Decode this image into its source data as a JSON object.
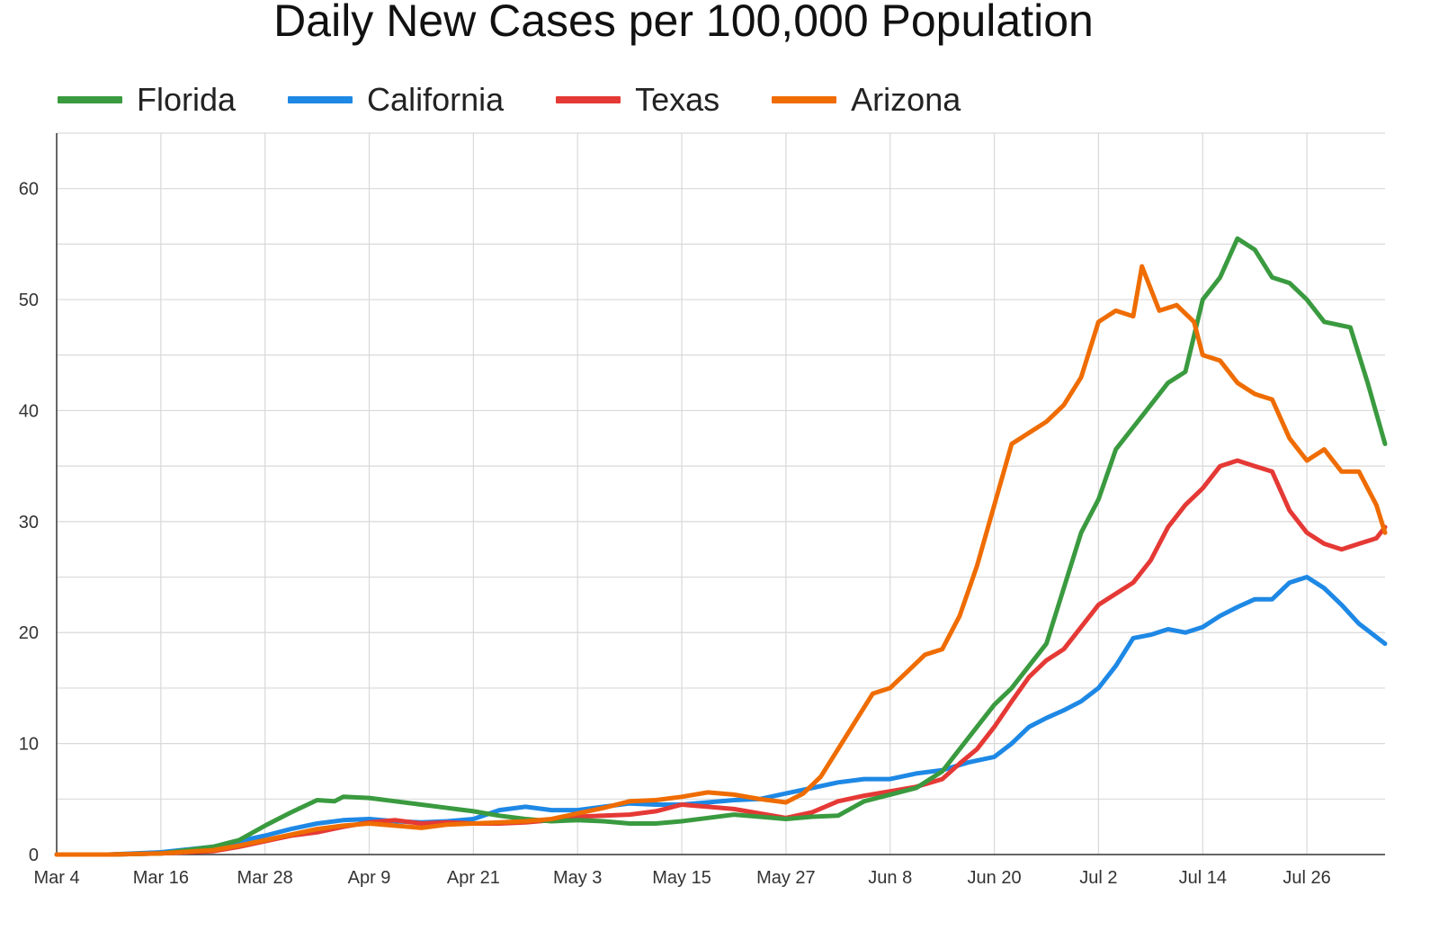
{
  "chart_data": {
    "type": "line",
    "title": "Daily New Cases per 100,000 Population",
    "xlabel": "",
    "ylabel": "",
    "ylim": [
      0,
      65
    ],
    "yticks": [
      0,
      10,
      20,
      30,
      40,
      50,
      60
    ],
    "x_tick_labels": [
      "Mar 4",
      "Mar 16",
      "Mar 28",
      "Apr 9",
      "Apr 21",
      "May 3",
      "May 15",
      "May 27",
      "Jun 8",
      "Jun 20",
      "Jul 2",
      "Jul 14",
      "Jul 26"
    ],
    "x_tick_days": [
      0,
      12,
      24,
      36,
      48,
      60,
      72,
      84,
      96,
      108,
      120,
      132,
      144
    ],
    "x_range_days": [
      0,
      153
    ],
    "grid": true,
    "legend_position": "top",
    "series": [
      {
        "name": "Florida",
        "color": "#3a9a3f",
        "points": [
          [
            0,
            0
          ],
          [
            6,
            0
          ],
          [
            12,
            0.1
          ],
          [
            18,
            0.7
          ],
          [
            21,
            1.3
          ],
          [
            24,
            2.6
          ],
          [
            27,
            3.8
          ],
          [
            30,
            4.9
          ],
          [
            32,
            4.8
          ],
          [
            33,
            5.2
          ],
          [
            36,
            5.1
          ],
          [
            39,
            4.8
          ],
          [
            42,
            4.5
          ],
          [
            45,
            4.2
          ],
          [
            48,
            3.9
          ],
          [
            51,
            3.5
          ],
          [
            54,
            3.2
          ],
          [
            57,
            3.0
          ],
          [
            60,
            3.1
          ],
          [
            63,
            3.0
          ],
          [
            66,
            2.8
          ],
          [
            69,
            2.8
          ],
          [
            72,
            3.0
          ],
          [
            75,
            3.3
          ],
          [
            78,
            3.6
          ],
          [
            81,
            3.4
          ],
          [
            84,
            3.2
          ],
          [
            87,
            3.4
          ],
          [
            90,
            3.5
          ],
          [
            93,
            4.8
          ],
          [
            96,
            5.4
          ],
          [
            99,
            6.0
          ],
          [
            102,
            7.5
          ],
          [
            104,
            9.5
          ],
          [
            106,
            11.5
          ],
          [
            108,
            13.5
          ],
          [
            110,
            15.0
          ],
          [
            112,
            17.0
          ],
          [
            114,
            19.0
          ],
          [
            116,
            24.0
          ],
          [
            118,
            29.0
          ],
          [
            120,
            32.0
          ],
          [
            122,
            36.5
          ],
          [
            124,
            38.5
          ],
          [
            126,
            40.5
          ],
          [
            128,
            42.5
          ],
          [
            130,
            43.5
          ],
          [
            132,
            50.0
          ],
          [
            134,
            52.0
          ],
          [
            136,
            55.5
          ],
          [
            138,
            54.5
          ],
          [
            140,
            52.0
          ],
          [
            142,
            51.5
          ],
          [
            144,
            50.0
          ],
          [
            146,
            48.0
          ],
          [
            149,
            47.5
          ],
          [
            151,
            42.5
          ],
          [
            153,
            37.0
          ]
        ]
      },
      {
        "name": "California",
        "color": "#1e88e5",
        "points": [
          [
            0,
            0
          ],
          [
            6,
            0
          ],
          [
            12,
            0.2
          ],
          [
            18,
            0.7
          ],
          [
            21,
            1.2
          ],
          [
            24,
            1.7
          ],
          [
            27,
            2.3
          ],
          [
            30,
            2.8
          ],
          [
            33,
            3.1
          ],
          [
            36,
            3.2
          ],
          [
            39,
            3.0
          ],
          [
            42,
            2.9
          ],
          [
            45,
            3.0
          ],
          [
            48,
            3.2
          ],
          [
            51,
            4.0
          ],
          [
            54,
            4.3
          ],
          [
            57,
            4.0
          ],
          [
            60,
            4.0
          ],
          [
            63,
            4.3
          ],
          [
            66,
            4.6
          ],
          [
            69,
            4.5
          ],
          [
            72,
            4.5
          ],
          [
            75,
            4.7
          ],
          [
            78,
            4.9
          ],
          [
            81,
            5.0
          ],
          [
            84,
            5.5
          ],
          [
            87,
            6.0
          ],
          [
            90,
            6.5
          ],
          [
            93,
            6.8
          ],
          [
            96,
            6.8
          ],
          [
            99,
            7.3
          ],
          [
            102,
            7.6
          ],
          [
            105,
            8.3
          ],
          [
            108,
            8.8
          ],
          [
            110,
            10.0
          ],
          [
            112,
            11.5
          ],
          [
            114,
            12.3
          ],
          [
            116,
            13.0
          ],
          [
            118,
            13.8
          ],
          [
            120,
            15.0
          ],
          [
            122,
            17.0
          ],
          [
            124,
            19.5
          ],
          [
            126,
            19.8
          ],
          [
            128,
            20.3
          ],
          [
            130,
            20.0
          ],
          [
            132,
            20.5
          ],
          [
            134,
            21.5
          ],
          [
            136,
            22.3
          ],
          [
            138,
            23.0
          ],
          [
            140,
            23.0
          ],
          [
            142,
            24.5
          ],
          [
            144,
            25.0
          ],
          [
            146,
            24.0
          ],
          [
            148,
            22.5
          ],
          [
            150,
            20.8
          ],
          [
            151,
            20.2
          ],
          [
            153,
            19.0
          ]
        ]
      },
      {
        "name": "Texas",
        "color": "#e53935",
        "points": [
          [
            0,
            0
          ],
          [
            6,
            0
          ],
          [
            12,
            0.1
          ],
          [
            18,
            0.3
          ],
          [
            21,
            0.7
          ],
          [
            24,
            1.2
          ],
          [
            27,
            1.7
          ],
          [
            30,
            2.0
          ],
          [
            33,
            2.5
          ],
          [
            36,
            2.9
          ],
          [
            39,
            3.1
          ],
          [
            42,
            2.8
          ],
          [
            45,
            2.9
          ],
          [
            48,
            2.8
          ],
          [
            51,
            2.8
          ],
          [
            54,
            2.9
          ],
          [
            57,
            3.1
          ],
          [
            60,
            3.4
          ],
          [
            63,
            3.5
          ],
          [
            66,
            3.6
          ],
          [
            69,
            3.9
          ],
          [
            72,
            4.5
          ],
          [
            75,
            4.3
          ],
          [
            78,
            4.1
          ],
          [
            81,
            3.7
          ],
          [
            84,
            3.3
          ],
          [
            87,
            3.8
          ],
          [
            90,
            4.8
          ],
          [
            93,
            5.3
          ],
          [
            96,
            5.7
          ],
          [
            99,
            6.1
          ],
          [
            102,
            6.8
          ],
          [
            104,
            8.2
          ],
          [
            106,
            9.5
          ],
          [
            108,
            11.5
          ],
          [
            110,
            13.8
          ],
          [
            112,
            16.0
          ],
          [
            114,
            17.5
          ],
          [
            116,
            18.5
          ],
          [
            118,
            20.5
          ],
          [
            120,
            22.5
          ],
          [
            122,
            23.5
          ],
          [
            124,
            24.5
          ],
          [
            126,
            26.5
          ],
          [
            128,
            29.5
          ],
          [
            130,
            31.5
          ],
          [
            132,
            33.0
          ],
          [
            134,
            35.0
          ],
          [
            136,
            35.5
          ],
          [
            138,
            35.0
          ],
          [
            140,
            34.5
          ],
          [
            142,
            31.0
          ],
          [
            144,
            29.0
          ],
          [
            146,
            28.0
          ],
          [
            148,
            27.5
          ],
          [
            150,
            28.0
          ],
          [
            152,
            28.5
          ],
          [
            153,
            29.5
          ]
        ]
      },
      {
        "name": "Arizona",
        "color": "#ef6c00",
        "points": [
          [
            0,
            0
          ],
          [
            6,
            0
          ],
          [
            12,
            0.1
          ],
          [
            18,
            0.4
          ],
          [
            21,
            0.8
          ],
          [
            24,
            1.3
          ],
          [
            27,
            1.8
          ],
          [
            30,
            2.3
          ],
          [
            33,
            2.6
          ],
          [
            36,
            2.8
          ],
          [
            39,
            2.6
          ],
          [
            42,
            2.4
          ],
          [
            45,
            2.7
          ],
          [
            48,
            2.8
          ],
          [
            51,
            2.9
          ],
          [
            54,
            3.0
          ],
          [
            57,
            3.2
          ],
          [
            60,
            3.7
          ],
          [
            63,
            4.2
          ],
          [
            66,
            4.8
          ],
          [
            69,
            4.9
          ],
          [
            72,
            5.2
          ],
          [
            75,
            5.6
          ],
          [
            78,
            5.4
          ],
          [
            81,
            5.0
          ],
          [
            84,
            4.7
          ],
          [
            86,
            5.5
          ],
          [
            88,
            7.0
          ],
          [
            90,
            9.5
          ],
          [
            92,
            12.0
          ],
          [
            94,
            14.5
          ],
          [
            96,
            15.0
          ],
          [
            98,
            16.5
          ],
          [
            100,
            18.0
          ],
          [
            102,
            18.5
          ],
          [
            104,
            21.5
          ],
          [
            106,
            26.0
          ],
          [
            108,
            31.5
          ],
          [
            110,
            37.0
          ],
          [
            112,
            38.0
          ],
          [
            114,
            39.0
          ],
          [
            116,
            40.5
          ],
          [
            118,
            43.0
          ],
          [
            120,
            48.0
          ],
          [
            122,
            49.0
          ],
          [
            124,
            48.5
          ],
          [
            125,
            53.0
          ],
          [
            127,
            49.0
          ],
          [
            129,
            49.5
          ],
          [
            131,
            48.0
          ],
          [
            132,
            45.0
          ],
          [
            134,
            44.5
          ],
          [
            136,
            42.5
          ],
          [
            138,
            41.5
          ],
          [
            140,
            41.0
          ],
          [
            142,
            37.5
          ],
          [
            144,
            35.5
          ],
          [
            146,
            36.5
          ],
          [
            148,
            34.5
          ],
          [
            150,
            34.5
          ],
          [
            152,
            31.5
          ],
          [
            153,
            29.0
          ]
        ]
      }
    ]
  }
}
